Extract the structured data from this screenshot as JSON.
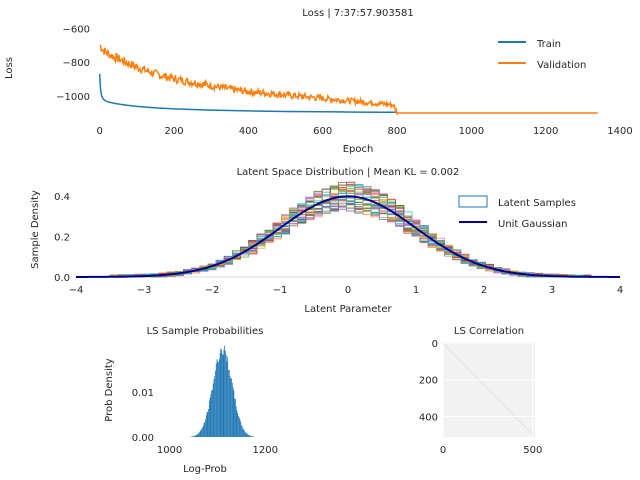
{
  "chart_data": [
    {
      "type": "line",
      "title": "Loss | 7:37:57.903581",
      "xlabel": "Epoch",
      "ylabel": "Loss",
      "xlim": [
        -10,
        1400
      ],
      "ylim": [
        -1120,
        -550
      ],
      "xticks": [
        "0",
        "200",
        "400",
        "600",
        "800",
        "1000",
        "1200",
        "1400"
      ],
      "xtick_values": [
        0,
        200,
        400,
        600,
        800,
        1000,
        1200,
        1400
      ],
      "yticks": [
        "−600",
        "−800",
        "−1000"
      ],
      "ytick_values": [
        -600,
        -800,
        -1000
      ],
      "legend": "top-right",
      "series": [
        {
          "name": "Train",
          "color": "#1f77b4",
          "x": [
            0,
            2,
            5,
            10,
            20,
            40,
            70,
            100,
            150,
            200,
            300,
            400,
            500,
            600,
            700,
            800
          ],
          "y": [
            -870,
            -960,
            -1000,
            -1020,
            -1035,
            -1045,
            -1055,
            -1063,
            -1072,
            -1078,
            -1085,
            -1090,
            -1093,
            -1095,
            -1097,
            -1098
          ]
        },
        {
          "name": "Validation",
          "color": "#ff7f0e",
          "x": [
            0,
            10,
            30,
            60,
            100,
            150,
            200,
            250,
            300,
            350,
            400,
            450,
            500,
            550,
            600,
            650,
            700,
            750,
            790,
            800,
            820,
            1000,
            1200,
            1340
          ],
          "y": [
            -700,
            -730,
            -760,
            -790,
            -830,
            -870,
            -900,
            -920,
            -940,
            -960,
            -975,
            -985,
            -995,
            -1005,
            -1015,
            -1025,
            -1035,
            -1045,
            -1055,
            -1100,
            -1102,
            -1102,
            -1102,
            -1102
          ]
        }
      ]
    },
    {
      "type": "line",
      "title": "Latent Space Distribution | Mean KL = 0.002",
      "xlabel": "Latent Parameter",
      "ylabel": "Sample Density",
      "xlim": [
        -4,
        4
      ],
      "ylim": [
        0,
        0.47
      ],
      "xticks": [
        "−4",
        "−3",
        "−2",
        "−1",
        "0",
        "1",
        "2",
        "3",
        "4"
      ],
      "xtick_values": [
        -4,
        -3,
        -2,
        -1,
        0,
        1,
        2,
        3,
        4
      ],
      "yticks": [
        "0.0",
        "0.2",
        "0.4"
      ],
      "ytick_values": [
        0,
        0.2,
        0.4
      ],
      "legend": "top-right",
      "series": [
        {
          "name": "Latent Samples",
          "color": "#1f77b4"
        },
        {
          "name": "Unit Gaussian",
          "color": "#00008b"
        }
      ],
      "sample_colors": [
        "#1f77b4",
        "#ff7f0e",
        "#2ca02c",
        "#d62728",
        "#9467bd",
        "#8c564b",
        "#e377c2",
        "#7f7f7f",
        "#bcbd22",
        "#17becf"
      ]
    },
    {
      "type": "bar",
      "title": "LS Sample Probabilities",
      "xlabel": "Log-Prob",
      "ylabel": "Prob Density",
      "xlim": [
        980,
        1210
      ],
      "ylim": [
        0,
        0.021
      ],
      "xticks": [
        "1000",
        "1200"
      ],
      "xtick_values": [
        1000,
        1200
      ],
      "yticks": [
        "0.00",
        "0.01"
      ],
      "ytick_values": [
        0,
        0.01
      ],
      "color": "#1f77b4",
      "mean": 1110,
      "std": 20,
      "peak": 0.0195
    },
    {
      "type": "heatmap",
      "title": "LS Correlation",
      "xlim": [
        0,
        512
      ],
      "ylim": [
        512,
        0
      ],
      "xticks": [
        "0",
        "500"
      ],
      "xtick_values": [
        0,
        500
      ],
      "yticks": [
        "0",
        "200",
        "400"
      ],
      "ytick_values": [
        0,
        200,
        400
      ]
    }
  ]
}
